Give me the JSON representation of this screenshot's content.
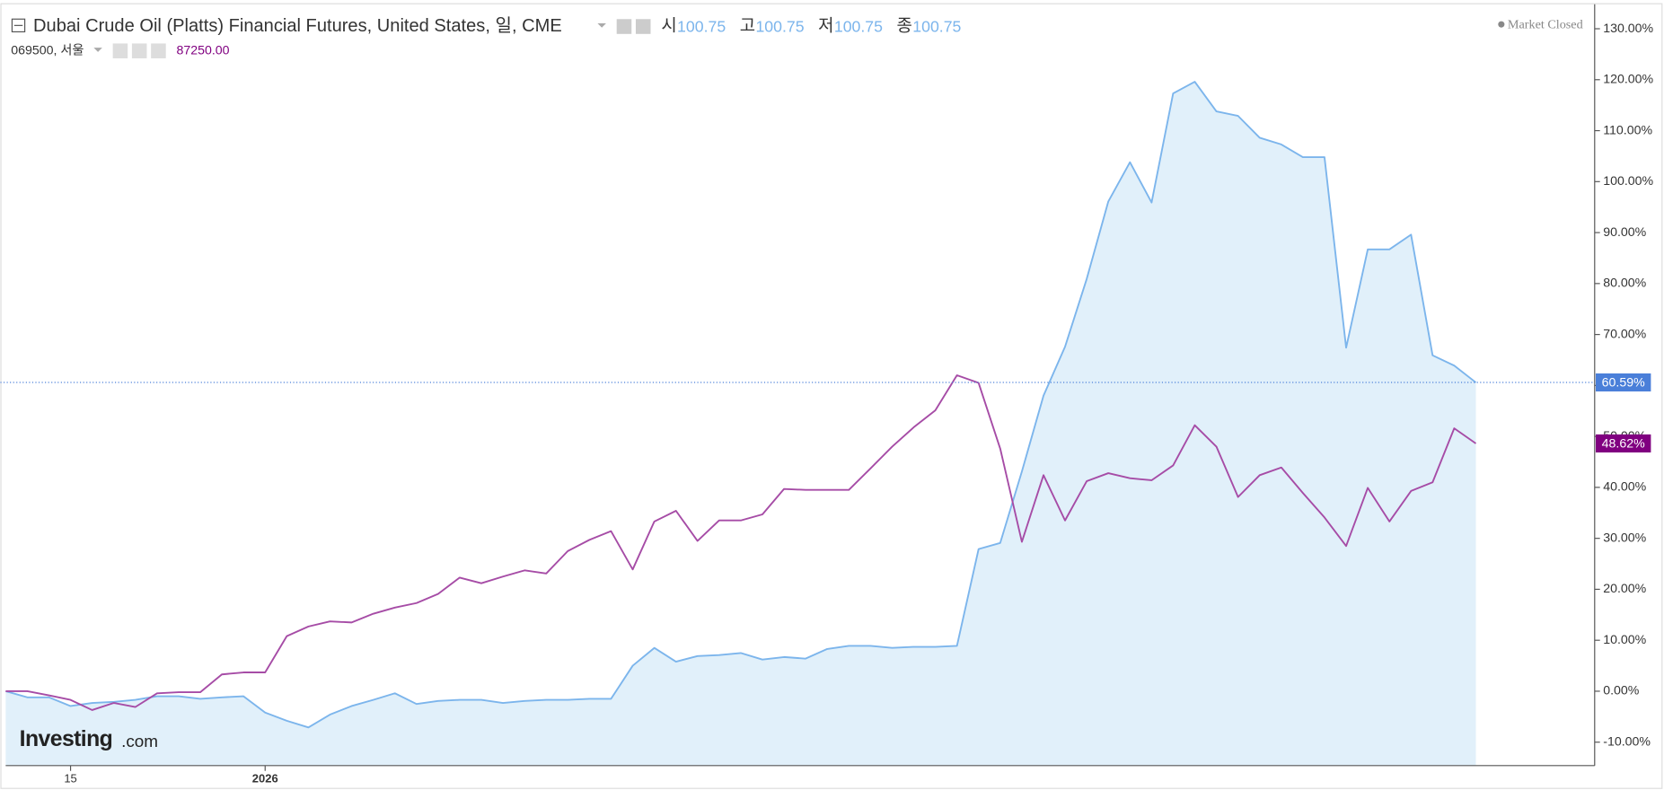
{
  "chart_data": {
    "type": "line",
    "title": "Dubai Crude Oil (Platts) Financial Futures, United States, 일, CME",
    "ohlc": [
      {
        "label": "시",
        "value": 100.75
      },
      {
        "label": "고",
        "value": 100.75
      },
      {
        "label": "저",
        "value": 100.75
      },
      {
        "label": "종",
        "value": 100.75
      }
    ],
    "status": "Market Closed",
    "compare": {
      "name": "069500, 서울",
      "price": "87250.00"
    },
    "logo": {
      "name": "Investing",
      "suffix": ".com"
    },
    "x": [
      null,
      null,
      null,
      "15",
      null,
      null,
      null,
      null,
      null,
      null,
      null,
      null,
      "2026",
      null,
      null,
      null,
      null,
      null,
      null,
      null,
      null,
      null,
      null,
      null,
      null,
      null,
      null,
      null,
      null,
      null,
      null,
      null,
      null,
      null,
      null,
      null,
      null,
      null,
      null,
      null,
      null,
      null,
      null,
      null,
      null,
      null,
      null,
      null,
      null,
      null,
      null,
      null,
      null,
      null,
      null,
      null,
      null,
      null,
      null,
      null,
      null,
      null,
      null,
      null,
      null,
      null,
      null,
      null,
      null
    ],
    "series": [
      {
        "name": "Dubai Crude Oil (Platts) Financial Futures",
        "color": "#7cb5ec",
        "fill": "#e1f0fa",
        "area": true,
        "last_label": "60.59%",
        "values": [
          0,
          -1.2,
          -1.2,
          -2.9,
          -2.3,
          -2.1,
          -1.7,
          -1.0,
          -1.0,
          -1.5,
          -1.2,
          -1.0,
          -4.2,
          -5.8,
          -7.1,
          -4.6,
          -2.9,
          -1.7,
          -0.4,
          -2.5,
          -1.9,
          -1.7,
          -1.7,
          -2.3,
          -1.9,
          -1.7,
          -1.7,
          -1.5,
          -1.5,
          5.0,
          8.5,
          5.8,
          6.9,
          7.1,
          7.5,
          6.2,
          6.7,
          6.4,
          8.3,
          8.9,
          8.9,
          8.5,
          8.7,
          8.7,
          8.9,
          27.9,
          29.1,
          43.1,
          58.0,
          67.6,
          80.9,
          96.1,
          103.8,
          95.9,
          117.3,
          119.6,
          113.8,
          112.9,
          108.6,
          107.3,
          104.8,
          104.8,
          67.4,
          86.7,
          86.7,
          89.6,
          65.9,
          63.9,
          60.59
        ]
      },
      {
        "name": "069500, 서울",
        "color": "#a64ca6",
        "area": false,
        "last_label": "48.62%",
        "badge": "#800080",
        "values": [
          0,
          0,
          -0.8,
          -1.7,
          -3.7,
          -2.3,
          -3.1,
          -0.4,
          -0.2,
          -0.2,
          3.3,
          3.7,
          3.7,
          10.8,
          12.7,
          13.7,
          13.5,
          15.2,
          16.4,
          17.3,
          19.1,
          22.3,
          21.2,
          22.5,
          23.7,
          23.1,
          27.5,
          29.7,
          31.4,
          23.9,
          33.3,
          35.4,
          29.5,
          33.5,
          33.5,
          34.7,
          39.7,
          39.5,
          39.5,
          39.5,
          43.7,
          48.0,
          51.8,
          55.1,
          62.0,
          60.5,
          47.6,
          29.3,
          42.4,
          33.5,
          41.2,
          42.8,
          41.8,
          41.4,
          44.3,
          52.2,
          48.0,
          38.1,
          42.4,
          43.9,
          38.9,
          34.1,
          28.5,
          39.9,
          33.3,
          39.3,
          41.0,
          51.6,
          48.62
        ]
      }
    ],
    "ylim": [
      -14.6,
      134.6
    ],
    "yticks": [
      {
        "value": -10,
        "label": "-10.00%"
      },
      {
        "value": 0,
        "label": "0.00%"
      },
      {
        "value": 10,
        "label": "10.00%"
      },
      {
        "value": 20,
        "label": "20.00%"
      },
      {
        "value": 30,
        "label": "30.00%"
      },
      {
        "value": 40,
        "label": "40.00%"
      },
      {
        "value": 50,
        "label": "50.00%"
      },
      {
        "value": 60,
        "label": "60.00%"
      },
      {
        "value": 70,
        "label": "70.00%"
      },
      {
        "value": 80,
        "label": "80.00%"
      },
      {
        "value": 90,
        "label": "90.00%"
      },
      {
        "value": 100,
        "label": "100.00%"
      },
      {
        "value": 110,
        "label": "110.00%"
      },
      {
        "value": 120,
        "label": "120.00%"
      },
      {
        "value": 130,
        "label": "130.00%"
      }
    ],
    "grid": false
  }
}
